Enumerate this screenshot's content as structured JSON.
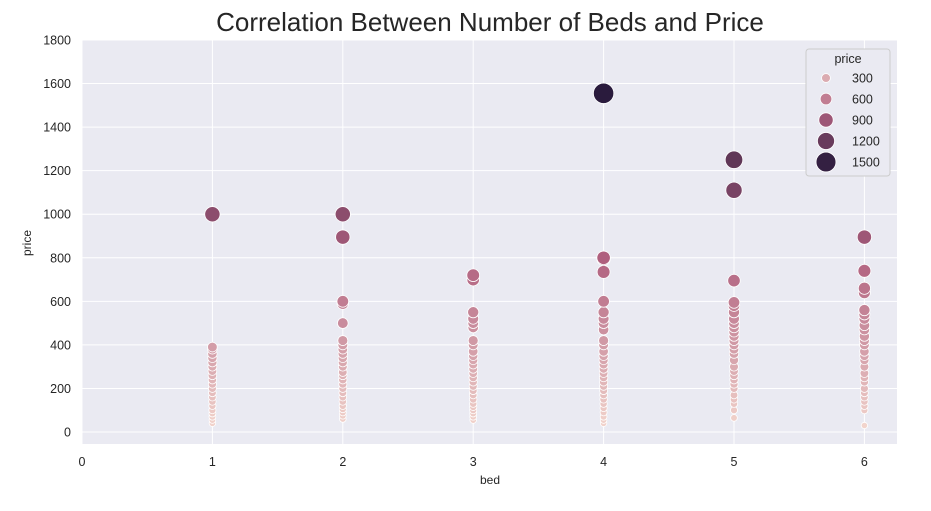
{
  "chart_data": {
    "type": "scatter",
    "title": "Correlation Between Number of Beds and Price",
    "xlabel": "bed",
    "ylabel": "price",
    "xlim": [
      0,
      6.25
    ],
    "ylim": [
      -55,
      1800
    ],
    "xticks": [
      0,
      1,
      2,
      3,
      4,
      5,
      6
    ],
    "yticks": [
      0,
      200,
      400,
      600,
      800,
      1000,
      1200,
      1400,
      1600,
      1800
    ],
    "grid": true,
    "legend": {
      "title": "price",
      "placement": "top-right",
      "entries": [
        {
          "label": "300",
          "value": 300
        },
        {
          "label": "600",
          "value": 600
        },
        {
          "label": "900",
          "value": 900
        },
        {
          "label": "1200",
          "value": 1200
        },
        {
          "label": "1500",
          "value": 1500
        }
      ]
    },
    "color_scale": {
      "low": "#f2d4cc",
      "mid": "#b0607f",
      "high": "#2a1b3d"
    },
    "points": [
      [
        1,
        40
      ],
      [
        1,
        55
      ],
      [
        1,
        70
      ],
      [
        1,
        85
      ],
      [
        1,
        100
      ],
      [
        1,
        120
      ],
      [
        1,
        140
      ],
      [
        1,
        160
      ],
      [
        1,
        180
      ],
      [
        1,
        200
      ],
      [
        1,
        220
      ],
      [
        1,
        240
      ],
      [
        1,
        260
      ],
      [
        1,
        280
      ],
      [
        1,
        300
      ],
      [
        1,
        320
      ],
      [
        1,
        340
      ],
      [
        1,
        360
      ],
      [
        1,
        380
      ],
      [
        1,
        390
      ],
      [
        1,
        1000
      ],
      [
        2,
        60
      ],
      [
        2,
        75
      ],
      [
        2,
        90
      ],
      [
        2,
        105
      ],
      [
        2,
        120
      ],
      [
        2,
        140
      ],
      [
        2,
        160
      ],
      [
        2,
        180
      ],
      [
        2,
        200
      ],
      [
        2,
        220
      ],
      [
        2,
        240
      ],
      [
        2,
        260
      ],
      [
        2,
        275
      ],
      [
        2,
        300
      ],
      [
        2,
        320
      ],
      [
        2,
        340
      ],
      [
        2,
        360
      ],
      [
        2,
        380
      ],
      [
        2,
        400
      ],
      [
        2,
        420
      ],
      [
        2,
        500
      ],
      [
        2,
        590
      ],
      [
        2,
        600
      ],
      [
        2,
        895
      ],
      [
        2,
        1000
      ],
      [
        3,
        55
      ],
      [
        3,
        70
      ],
      [
        3,
        85
      ],
      [
        3,
        100
      ],
      [
        3,
        115
      ],
      [
        3,
        130
      ],
      [
        3,
        150
      ],
      [
        3,
        170
      ],
      [
        3,
        190
      ],
      [
        3,
        210
      ],
      [
        3,
        230
      ],
      [
        3,
        250
      ],
      [
        3,
        270
      ],
      [
        3,
        290
      ],
      [
        3,
        310
      ],
      [
        3,
        330
      ],
      [
        3,
        350
      ],
      [
        3,
        370
      ],
      [
        3,
        400
      ],
      [
        3,
        420
      ],
      [
        3,
        480
      ],
      [
        3,
        500
      ],
      [
        3,
        520
      ],
      [
        3,
        550
      ],
      [
        3,
        700
      ],
      [
        3,
        720
      ],
      [
        4,
        40
      ],
      [
        4,
        55
      ],
      [
        4,
        70
      ],
      [
        4,
        90
      ],
      [
        4,
        110
      ],
      [
        4,
        130
      ],
      [
        4,
        150
      ],
      [
        4,
        170
      ],
      [
        4,
        190
      ],
      [
        4,
        210
      ],
      [
        4,
        230
      ],
      [
        4,
        250
      ],
      [
        4,
        270
      ],
      [
        4,
        290
      ],
      [
        4,
        310
      ],
      [
        4,
        330
      ],
      [
        4,
        350
      ],
      [
        4,
        370
      ],
      [
        4,
        400
      ],
      [
        4,
        420
      ],
      [
        4,
        470
      ],
      [
        4,
        500
      ],
      [
        4,
        520
      ],
      [
        4,
        550
      ],
      [
        4,
        600
      ],
      [
        4,
        735
      ],
      [
        4,
        795
      ],
      [
        4,
        800
      ],
      [
        4,
        1555
      ],
      [
        5,
        65
      ],
      [
        5,
        100
      ],
      [
        5,
        130
      ],
      [
        5,
        150
      ],
      [
        5,
        170
      ],
      [
        5,
        200
      ],
      [
        5,
        220
      ],
      [
        5,
        240
      ],
      [
        5,
        260
      ],
      [
        5,
        280
      ],
      [
        5,
        300
      ],
      [
        5,
        330
      ],
      [
        5,
        360
      ],
      [
        5,
        380
      ],
      [
        5,
        400
      ],
      [
        5,
        420
      ],
      [
        5,
        440
      ],
      [
        5,
        460
      ],
      [
        5,
        480
      ],
      [
        5,
        500
      ],
      [
        5,
        520
      ],
      [
        5,
        550
      ],
      [
        5,
        580
      ],
      [
        5,
        595
      ],
      [
        5,
        695
      ],
      [
        5,
        1110
      ],
      [
        5,
        1250
      ],
      [
        6,
        30
      ],
      [
        6,
        100
      ],
      [
        6,
        120
      ],
      [
        6,
        140
      ],
      [
        6,
        160
      ],
      [
        6,
        180
      ],
      [
        6,
        200
      ],
      [
        6,
        230
      ],
      [
        6,
        250
      ],
      [
        6,
        270
      ],
      [
        6,
        300
      ],
      [
        6,
        330
      ],
      [
        6,
        350
      ],
      [
        6,
        370
      ],
      [
        6,
        400
      ],
      [
        6,
        420
      ],
      [
        6,
        440
      ],
      [
        6,
        470
      ],
      [
        6,
        490
      ],
      [
        6,
        520
      ],
      [
        6,
        540
      ],
      [
        6,
        560
      ],
      [
        6,
        640
      ],
      [
        6,
        660
      ],
      [
        6,
        740
      ],
      [
        6,
        895
      ]
    ]
  }
}
